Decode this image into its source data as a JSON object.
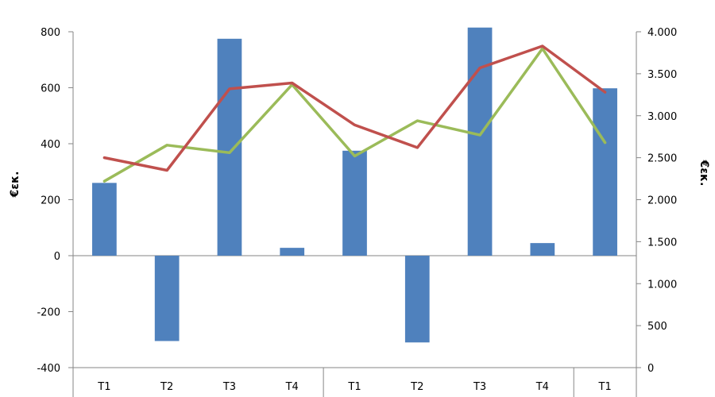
{
  "chart_data": {
    "type": "bar",
    "categories": [
      "T1",
      "T2",
      "T3",
      "T4",
      "T1",
      "T2",
      "T3",
      "T4",
      "T1"
    ],
    "series": [
      {
        "axis": "left",
        "kind": "bar",
        "color": "#4F81BD",
        "values": [
          260,
          -305,
          775,
          28,
          375,
          -310,
          815,
          45,
          598
        ]
      },
      {
        "axis": "right",
        "kind": "line",
        "color": "#C0504D",
        "values": [
          2500,
          2350,
          3320,
          3390,
          2890,
          2620,
          3570,
          3830,
          3280
        ]
      },
      {
        "axis": "right",
        "kind": "line",
        "color": "#9BBB59",
        "values": [
          2220,
          2650,
          2560,
          3370,
          2520,
          2940,
          2770,
          3800,
          2680
        ]
      }
    ],
    "y_left": {
      "label": "€εκ.",
      "min": -400,
      "max": 800,
      "ticks": [
        -400,
        -200,
        0,
        200,
        400,
        600,
        800
      ],
      "tick_labels": [
        "-400",
        "-200",
        "0",
        "200",
        "400",
        "600",
        "800"
      ]
    },
    "y_right": {
      "label": "€εκ.",
      "min": 0,
      "max": 4000,
      "ticks": [
        0,
        500,
        1000,
        1500,
        2000,
        2500,
        3000,
        3500,
        4000
      ],
      "tick_labels": [
        "0",
        "500",
        "1.000",
        "1.500",
        "2.000",
        "2.500",
        "3.000",
        "3.500",
        "4.000"
      ]
    },
    "groups": [
      [
        0,
        3
      ],
      [
        4,
        7
      ],
      [
        8,
        8
      ]
    ],
    "grid": false,
    "legend": "none"
  }
}
